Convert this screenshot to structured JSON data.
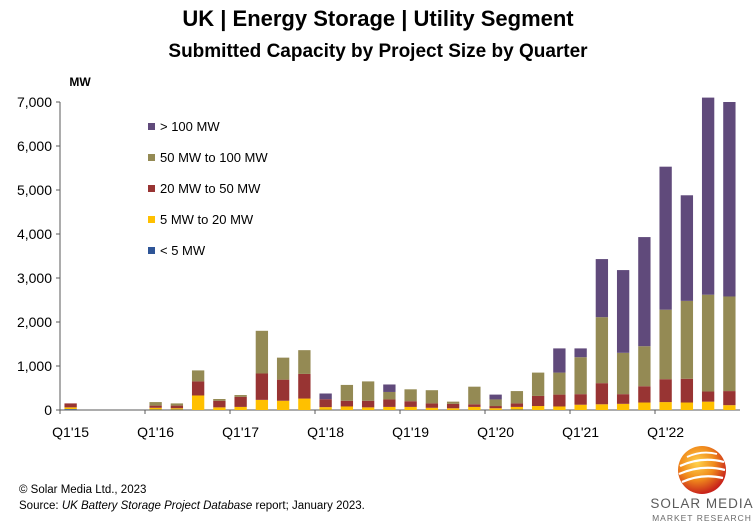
{
  "chart_data": {
    "type": "bar",
    "stacked": true,
    "title": "UK | Energy Storage | Utility Segment",
    "subtitle": "Submitted Capacity by Project Size by Quarter",
    "ylabel": "MW",
    "xlabel": "",
    "ylim": [
      0,
      7000
    ],
    "yticks": [
      0,
      1000,
      2000,
      3000,
      4000,
      5000,
      6000,
      7000
    ],
    "ytick_labels": [
      "0",
      "1,000",
      "2,000",
      "3,000",
      "4,000",
      "5,000",
      "6,000",
      "7,000"
    ],
    "grid": false,
    "legend_position": "top-left",
    "categories": [
      "Q1'15",
      "Q2'15",
      "Q3'15",
      "Q4'15",
      "Q1'16",
      "Q2'16",
      "Q3'16",
      "Q4'16",
      "Q1'17",
      "Q2'17",
      "Q3'17",
      "Q4'17",
      "Q1'18",
      "Q2'18",
      "Q3'18",
      "Q4'18",
      "Q1'19",
      "Q2'19",
      "Q3'19",
      "Q4'19",
      "Q1'20",
      "Q2'20",
      "Q3'20",
      "Q4'20",
      "Q1'21",
      "Q2'21",
      "Q3'21",
      "Q4'21",
      "Q1'22",
      "Q2'22",
      "Q3'22",
      "Q4'22"
    ],
    "xtick_labels": [
      "Q1'15",
      "Q1'16",
      "Q1'17",
      "Q1'18",
      "Q1'19",
      "Q1'20",
      "Q1'21",
      "Q1'22"
    ],
    "series": [
      {
        "name": "< 5 MW",
        "color": "#2e5597",
        "values": [
          20,
          0,
          0,
          0,
          10,
          10,
          0,
          0,
          0,
          0,
          0,
          0,
          5,
          0,
          0,
          0,
          0,
          0,
          0,
          0,
          0,
          10,
          0,
          0,
          0,
          0,
          0,
          0,
          0,
          0,
          0,
          0
        ]
      },
      {
        "name": "5 MW to 20 MW",
        "color": "#ffc000",
        "values": [
          40,
          0,
          0,
          0,
          40,
          30,
          330,
          60,
          70,
          230,
          210,
          260,
          60,
          80,
          60,
          70,
          70,
          50,
          40,
          70,
          40,
          60,
          90,
          80,
          120,
          130,
          140,
          170,
          180,
          170,
          190,
          110
        ]
      },
      {
        "name": "20 MW to 50 MW",
        "color": "#983433",
        "values": [
          90,
          0,
          0,
          0,
          50,
          60,
          320,
          150,
          230,
          600,
          480,
          560,
          180,
          130,
          150,
          170,
          130,
          100,
          100,
          60,
          50,
          80,
          230,
          270,
          240,
          480,
          220,
          370,
          520,
          540,
          230,
          320
        ]
      },
      {
        "name": "50 MW to 100 MW",
        "color": "#948a54",
        "values": [
          0,
          0,
          0,
          0,
          80,
          50,
          250,
          40,
          40,
          970,
          500,
          540,
          0,
          360,
          440,
          170,
          270,
          300,
          50,
          400,
          150,
          280,
          530,
          500,
          840,
          1500,
          940,
          910,
          1580,
          1770,
          2200,
          2150
        ]
      },
      {
        "name": "> 100 MW",
        "color": "#604a7b",
        "values": [
          0,
          0,
          0,
          0,
          0,
          0,
          0,
          0,
          0,
          0,
          0,
          0,
          130,
          0,
          0,
          170,
          0,
          0,
          0,
          0,
          110,
          0,
          0,
          550,
          200,
          1320,
          1880,
          2480,
          3250,
          2400,
          4480,
          4420
        ]
      }
    ],
    "legend_order": [
      "> 100 MW",
      "50 MW to 100 MW",
      "20 MW to 50 MW",
      "5 MW to 20 MW",
      "< 5 MW"
    ]
  },
  "footer": {
    "copyright": "© Solar Media Ltd., 2023",
    "source_prefix": "Source: ",
    "source_title": "UK Battery Storage Project Database",
    "source_suffix": " report; January 2023."
  },
  "logo": {
    "name": "SOLAR MEDIA",
    "sub": "MARKET RESEARCH",
    "colors": [
      "#d42a20",
      "#f7a400"
    ]
  }
}
